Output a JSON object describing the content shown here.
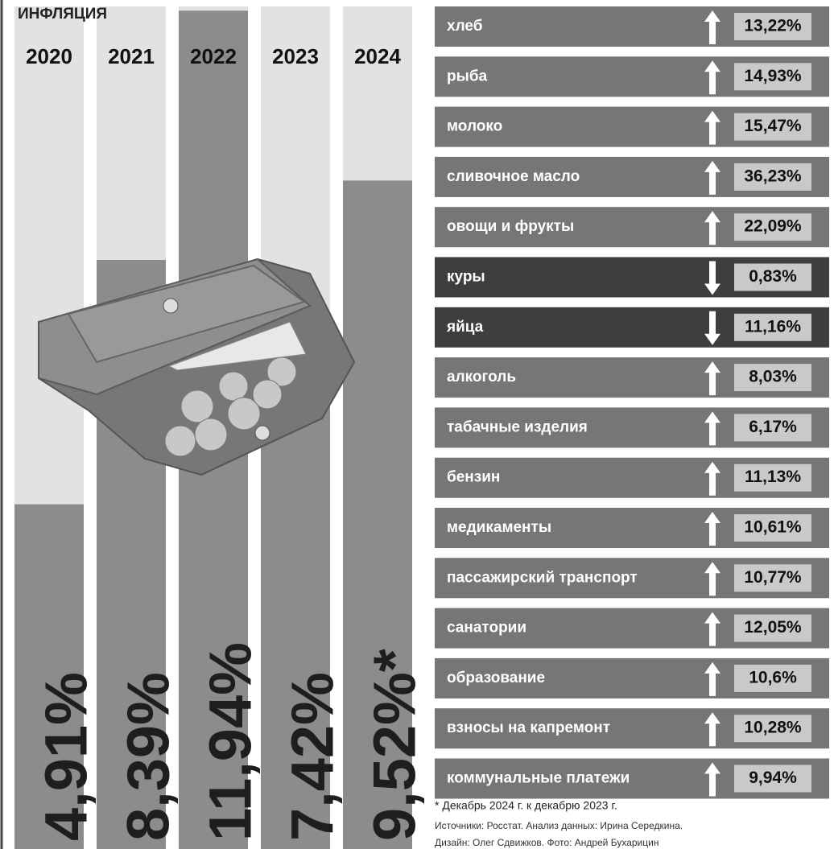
{
  "chart_data": {
    "type": "bar",
    "title": "ИНФЛЯЦИЯ",
    "categories": [
      "2020",
      "2021",
      "2022",
      "2023",
      "2024"
    ],
    "values": [
      4.91,
      8.39,
      11.94,
      7.42,
      9.52
    ],
    "value_labels": [
      "4,91%",
      "8,39%",
      "11,94%",
      "7,42%",
      "9,52%*"
    ],
    "color": "#8c8c8c",
    "ylim": [
      0,
      12
    ]
  },
  "price_table": {
    "rows": [
      {
        "label": "хлеб",
        "direction": "up",
        "change": "13,22%"
      },
      {
        "label": "рыба",
        "direction": "up",
        "change": "14,93%"
      },
      {
        "label": "молоко",
        "direction": "up",
        "change": "15,47%"
      },
      {
        "label": "сливочное масло",
        "direction": "up",
        "change": "36,23%"
      },
      {
        "label": "овощи и фрукты",
        "direction": "up",
        "change": "22,09%"
      },
      {
        "label": "куры",
        "direction": "down",
        "change": "0,83%"
      },
      {
        "label": "яйца",
        "direction": "down",
        "change": "11,16%"
      },
      {
        "label": "алкоголь",
        "direction": "up",
        "change": "8,03%"
      },
      {
        "label": "табачные изделия",
        "direction": "up",
        "change": "6,17%"
      },
      {
        "label": "бензин",
        "direction": "up",
        "change": "11,13%"
      },
      {
        "label": "медикаменты",
        "direction": "up",
        "change": "10,61%"
      },
      {
        "label": "пассажирский транспорт",
        "direction": "up",
        "change": "10,77%"
      },
      {
        "label": "санатории",
        "direction": "up",
        "change": "12,05%"
      },
      {
        "label": "образование",
        "direction": "up",
        "change": "10,6%"
      },
      {
        "label": "взносы на капремонт",
        "direction": "up",
        "change": "10,28%"
      },
      {
        "label": "коммунальные платежи",
        "direction": "up",
        "change": "9,94%"
      }
    ]
  },
  "footnote": "* Декабрь 2024 г. к декабрю 2023 г.",
  "sources": "Источники: Росстат. Анализ данных: Ирина Середкина.",
  "credits": "Дизайн: Олег Сдвижков. Фото: Андрей Бухарицин"
}
